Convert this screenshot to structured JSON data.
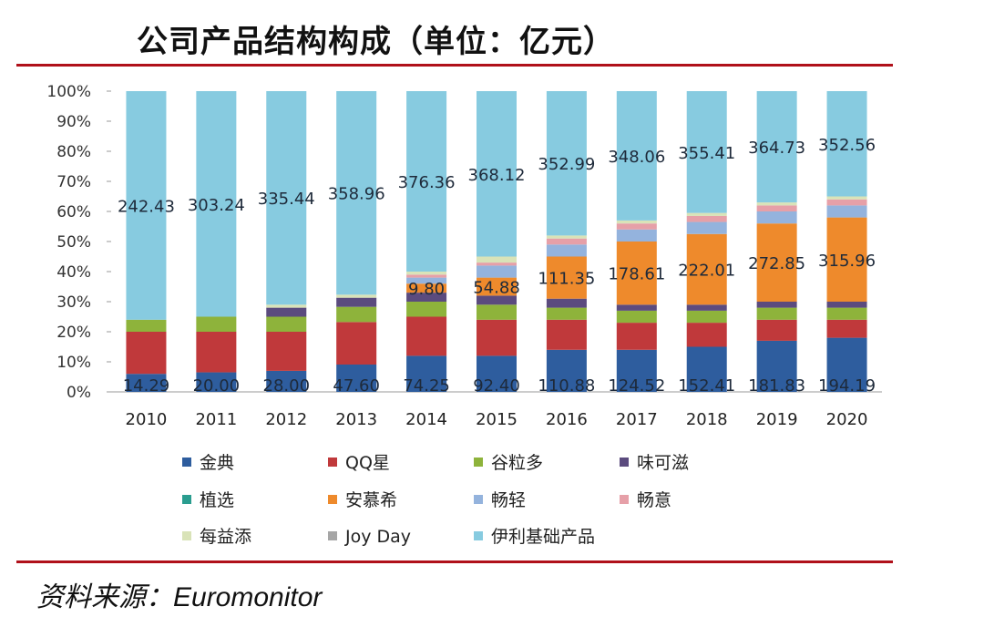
{
  "title": "公司产品结构构成（单位：亿元）",
  "source": "资料来源：Euromonitor",
  "chart_data": {
    "type": "bar",
    "stacked": "percent",
    "title": "公司产品结构构成（单位：亿元）",
    "categories": [
      "2010",
      "2011",
      "2012",
      "2013",
      "2014",
      "2015",
      "2016",
      "2017",
      "2018",
      "2019",
      "2020"
    ],
    "y_ticks": [
      "0%",
      "10%",
      "20%",
      "30%",
      "40%",
      "50%",
      "60%",
      "70%",
      "80%",
      "90%",
      "100%"
    ],
    "ylim": [
      0,
      100
    ],
    "legend_position": "bottom",
    "series": [
      {
        "name": "金典",
        "color": "#2e5d9e",
        "shares": [
          6,
          6.5,
          7,
          9,
          12,
          12,
          14,
          14,
          15,
          17,
          18
        ],
        "labels": [
          "14.29",
          "20.00",
          "28.00",
          "47.60",
          "74.25",
          "92.40",
          "110.88",
          "124.52",
          "152.41",
          "181.83",
          "194.19"
        ]
      },
      {
        "name": "QQ星",
        "color": "#c0393b",
        "shares": [
          14,
          13.5,
          13,
          14,
          13,
          12,
          10,
          9,
          8,
          7,
          6
        ],
        "labels": []
      },
      {
        "name": "谷粒多",
        "color": "#8eb33b",
        "shares": [
          4,
          5,
          5,
          5,
          5,
          5,
          4,
          4,
          4,
          4,
          4
        ],
        "labels": []
      },
      {
        "name": "味可滋",
        "color": "#5b4b7e",
        "shares": [
          0,
          0,
          3,
          3,
          3,
          3,
          3,
          2,
          2,
          2,
          2
        ],
        "labels": []
      },
      {
        "name": "植选",
        "color": "#2a9d8f",
        "shares": [
          0,
          0,
          0,
          0,
          0,
          0,
          0,
          0,
          0,
          0,
          0
        ],
        "labels": []
      },
      {
        "name": "安慕希",
        "color": "#ee8a2c",
        "shares": [
          0,
          0,
          0,
          0,
          3,
          6,
          14,
          21,
          23.5,
          26,
          28
        ],
        "labels": [
          "",
          "",
          "",
          "",
          "9.80",
          "54.88",
          "111.35",
          "178.61",
          "222.01",
          "272.85",
          "315.96"
        ]
      },
      {
        "name": "畅轻",
        "color": "#94b3dd",
        "shares": [
          0,
          0,
          0,
          0,
          2,
          4,
          4,
          4,
          4,
          4,
          4
        ],
        "labels": []
      },
      {
        "name": "畅意",
        "color": "#e6a0a8",
        "shares": [
          0,
          0,
          0,
          0,
          1,
          1,
          2,
          2,
          2,
          2,
          2
        ],
        "labels": []
      },
      {
        "name": "每益添",
        "color": "#d9e3b8",
        "shares": [
          0,
          0,
          1,
          1,
          1,
          2,
          1,
          1,
          1,
          1,
          1
        ],
        "labels": []
      },
      {
        "name": "Joy Day",
        "color": "#a6a6a6",
        "shares": [
          0,
          0,
          0,
          0,
          0,
          0,
          0,
          0,
          0,
          0,
          0
        ],
        "labels": []
      },
      {
        "name": "伊利基础产品",
        "color": "#87cbe0",
        "shares": [
          76,
          75,
          71,
          67,
          60,
          55,
          48,
          43,
          40.5,
          37,
          35
        ],
        "labels": [
          "242.43",
          "303.24",
          "335.44",
          "358.96",
          "376.36",
          "368.12",
          "352.99",
          "348.06",
          "355.41",
          "364.73",
          "352.56"
        ]
      }
    ]
  }
}
